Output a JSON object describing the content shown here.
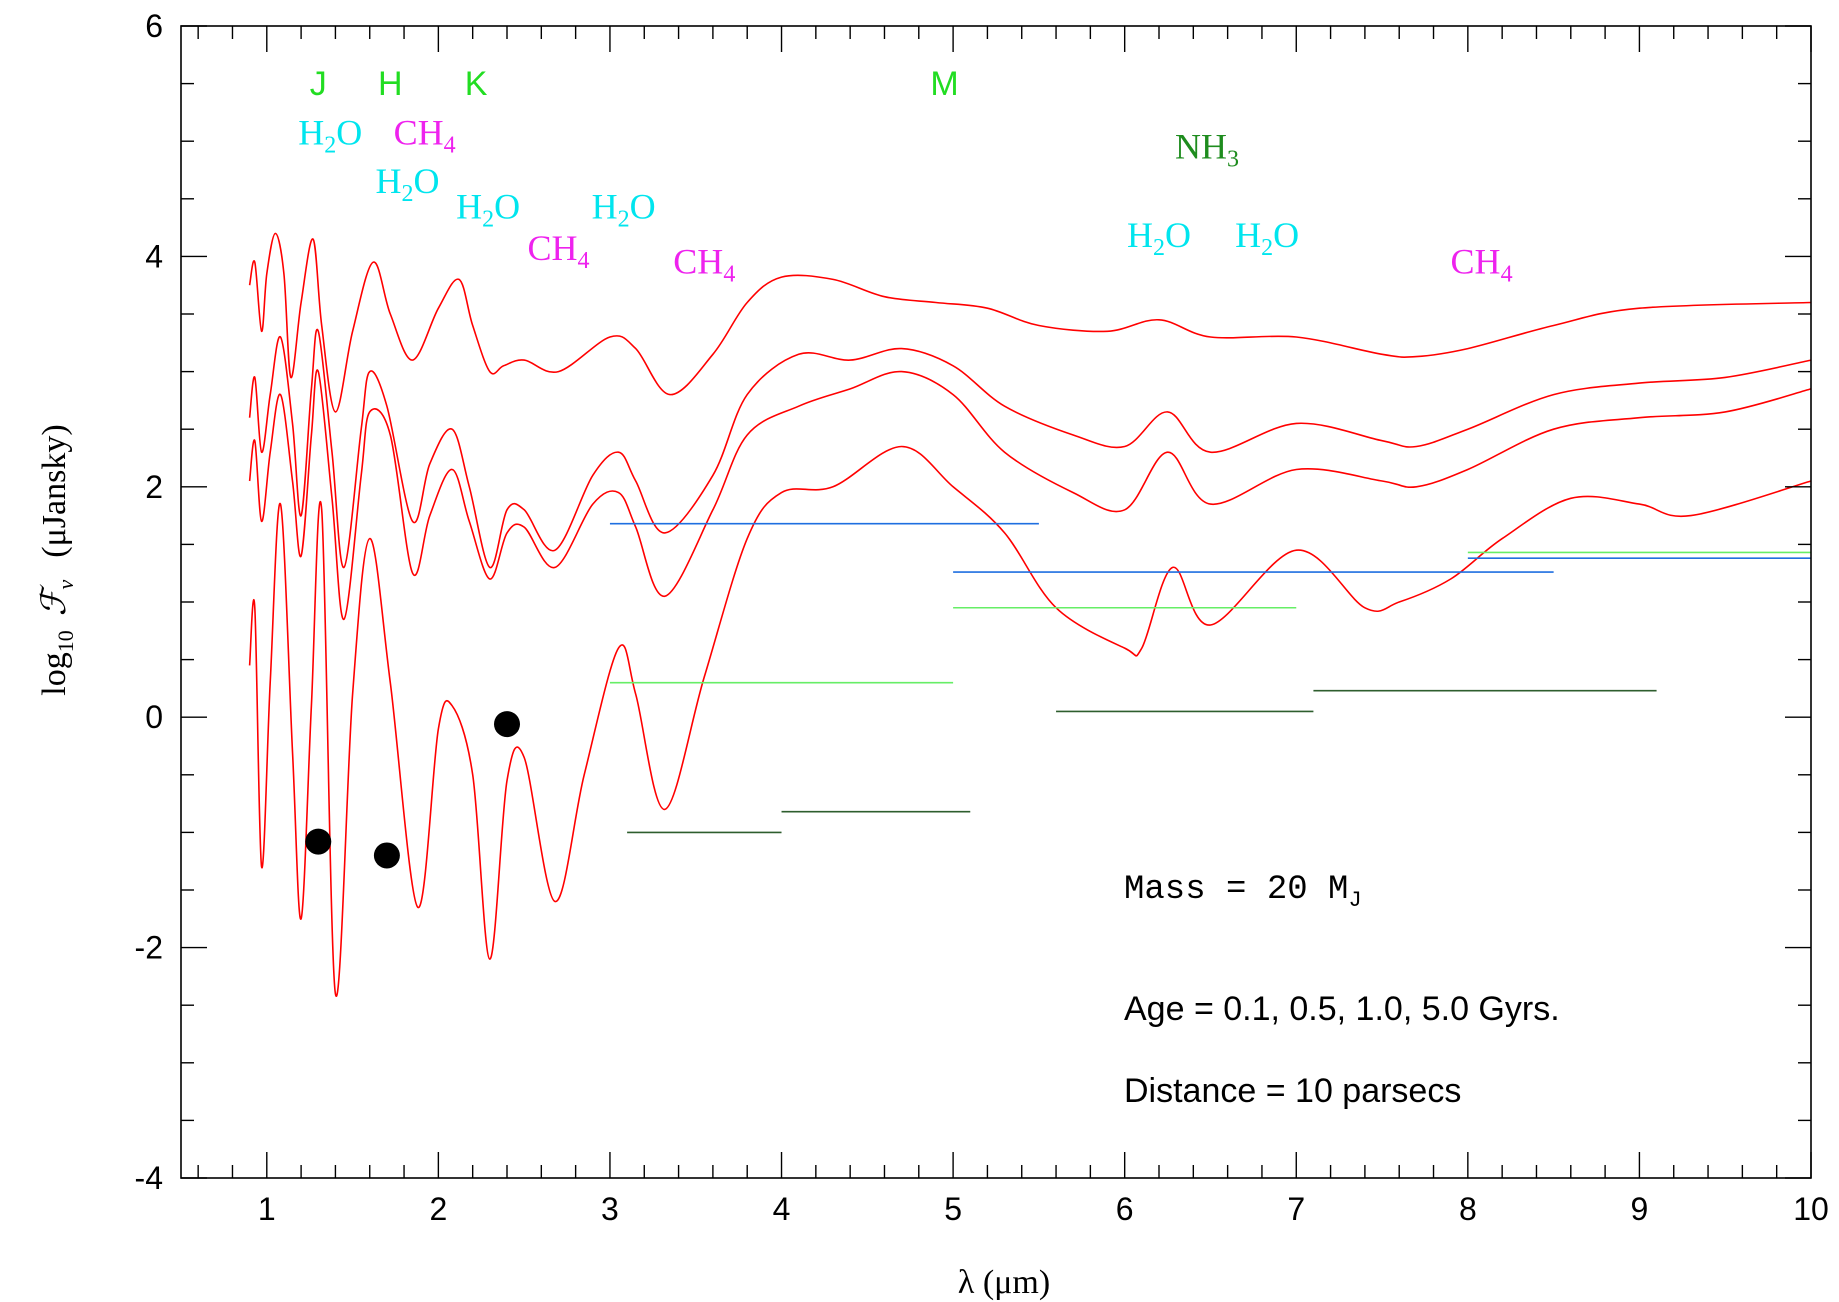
{
  "chart_data": {
    "type": "line",
    "xlabel": "λ (μm)",
    "ylabel_parts": {
      "log": "log",
      "sub": "10",
      "fnu": "ℱ",
      "nu": "ν",
      "unit": "(μJansky)"
    },
    "xlim": [
      0.5,
      10
    ],
    "ylim": [
      -4,
      6
    ],
    "x_ticks": [
      "1",
      "2",
      "3",
      "4",
      "5",
      "6",
      "7",
      "8",
      "9",
      "10"
    ],
    "y_ticks": [
      "-4",
      "-2",
      "0",
      "2",
      "4",
      "6"
    ],
    "series": [
      {
        "color": "#ff0000",
        "x": [
          0.9,
          0.93,
          0.97,
          1.0,
          1.05,
          1.1,
          1.14,
          1.2,
          1.27,
          1.32,
          1.4,
          1.5,
          1.62,
          1.72,
          1.85,
          2.0,
          2.12,
          2.2,
          2.3,
          2.38,
          2.5,
          2.7,
          3.0,
          3.15,
          3.35,
          3.6,
          3.8,
          4.0,
          4.3,
          4.6,
          4.9,
          5.2,
          5.5,
          5.9,
          6.2,
          6.5,
          7.0,
          7.5,
          7.7,
          8.0,
          8.5,
          9.0,
          10.0
        ],
        "y": [
          3.75,
          3.95,
          3.35,
          3.85,
          4.2,
          3.85,
          2.95,
          3.6,
          4.15,
          3.4,
          2.65,
          3.35,
          3.95,
          3.5,
          3.1,
          3.55,
          3.8,
          3.4,
          3.0,
          3.05,
          3.1,
          3.0,
          3.3,
          3.2,
          2.8,
          3.15,
          3.6,
          3.82,
          3.8,
          3.65,
          3.6,
          3.55,
          3.4,
          3.35,
          3.45,
          3.3,
          3.3,
          3.15,
          3.13,
          3.2,
          3.4,
          3.55,
          3.6
        ]
      },
      {
        "color": "#ff0000",
        "x": [
          0.9,
          0.93,
          0.97,
          1.02,
          1.08,
          1.15,
          1.2,
          1.26,
          1.3,
          1.38,
          1.45,
          1.55,
          1.6,
          1.7,
          1.85,
          1.95,
          2.08,
          2.18,
          2.3,
          2.4,
          2.5,
          2.68,
          2.9,
          3.05,
          3.15,
          3.32,
          3.6,
          3.8,
          4.1,
          4.4,
          4.7,
          5.0,
          5.3,
          5.7,
          6.0,
          6.25,
          6.5,
          7.0,
          7.5,
          7.7,
          8.0,
          8.5,
          9.0,
          9.5,
          10.0
        ],
        "y": [
          2.6,
          2.95,
          2.3,
          2.8,
          3.3,
          2.55,
          1.75,
          2.85,
          3.35,
          2.3,
          1.3,
          2.5,
          3.0,
          2.7,
          1.7,
          2.2,
          2.5,
          2.0,
          1.3,
          1.8,
          1.8,
          1.45,
          2.1,
          2.3,
          2.05,
          1.6,
          2.1,
          2.8,
          3.15,
          3.1,
          3.2,
          3.05,
          2.7,
          2.45,
          2.35,
          2.65,
          2.3,
          2.55,
          2.4,
          2.35,
          2.5,
          2.8,
          2.9,
          2.95,
          3.1
        ]
      },
      {
        "color": "#ff0000",
        "x": [
          0.9,
          0.93,
          0.97,
          1.02,
          1.08,
          1.15,
          1.2,
          1.26,
          1.3,
          1.38,
          1.45,
          1.55,
          1.6,
          1.72,
          1.85,
          1.95,
          2.08,
          2.18,
          2.3,
          2.4,
          2.5,
          2.68,
          2.9,
          3.05,
          3.15,
          3.32,
          3.6,
          3.8,
          4.1,
          4.4,
          4.7,
          5.0,
          5.3,
          5.7,
          6.0,
          6.25,
          6.5,
          7.0,
          7.5,
          7.7,
          8.0,
          8.5,
          9.0,
          9.5,
          10.0
        ],
        "y": [
          2.05,
          2.4,
          1.7,
          2.3,
          2.8,
          2.05,
          1.4,
          2.45,
          3.0,
          1.9,
          0.85,
          2.1,
          2.65,
          2.45,
          1.25,
          1.75,
          2.15,
          1.7,
          1.2,
          1.6,
          1.65,
          1.3,
          1.85,
          1.95,
          1.65,
          1.05,
          1.8,
          2.45,
          2.7,
          2.85,
          3.0,
          2.8,
          2.3,
          1.95,
          1.8,
          2.3,
          1.85,
          2.15,
          2.05,
          2.0,
          2.15,
          2.5,
          2.6,
          2.65,
          2.85
        ]
      },
      {
        "color": "#ff0000",
        "x": [
          0.9,
          0.93,
          0.97,
          1.02,
          1.08,
          1.15,
          1.2,
          1.26,
          1.32,
          1.4,
          1.5,
          1.6,
          1.72,
          1.88,
          2.0,
          2.08,
          2.2,
          2.3,
          2.4,
          2.5,
          2.68,
          2.85,
          3.05,
          3.15,
          3.32,
          3.55,
          3.8,
          4.0,
          4.3,
          4.7,
          5.0,
          5.3,
          5.6,
          6.0,
          6.1,
          6.28,
          6.5,
          7.0,
          7.4,
          7.6,
          7.9,
          8.2,
          8.6,
          9.0,
          9.3,
          10.0
        ],
        "y": [
          0.45,
          0.95,
          -1.3,
          0.3,
          1.85,
          -0.3,
          -1.75,
          0.1,
          1.8,
          -2.4,
          0.2,
          1.55,
          0.3,
          -1.65,
          -0.1,
          0.1,
          -0.5,
          -2.1,
          -0.55,
          -0.35,
          -1.6,
          -0.5,
          0.6,
          0.2,
          -0.8,
          0.35,
          1.55,
          1.95,
          2.0,
          2.35,
          2.0,
          1.6,
          0.95,
          0.6,
          0.6,
          1.3,
          0.8,
          1.45,
          0.95,
          1.0,
          1.2,
          1.55,
          1.9,
          1.85,
          1.75,
          2.05
        ]
      }
    ],
    "filter_bands": [
      {
        "color": "#1f6fe0",
        "x": [
          3.0,
          5.5
        ],
        "y": 1.68
      },
      {
        "color": "#1f6fe0",
        "x": [
          5.0,
          8.5
        ],
        "y": 1.26
      },
      {
        "color": "#1f6fe0",
        "x": [
          8.0,
          10.0
        ],
        "y": 1.38
      },
      {
        "color": "#66ee66",
        "x": [
          3.0,
          5.0
        ],
        "y": 0.3
      },
      {
        "color": "#66ee66",
        "x": [
          5.0,
          7.0
        ],
        "y": 0.95
      },
      {
        "color": "#66ee66",
        "x": [
          8.0,
          10.0
        ],
        "y": 1.43
      },
      {
        "color": "#2e5e2e",
        "x": [
          3.1,
          4.0
        ],
        "y": -1.0
      },
      {
        "color": "#2e5e2e",
        "x": [
          4.0,
          5.1
        ],
        "y": -0.82
      },
      {
        "color": "#2e5e2e",
        "x": [
          5.6,
          7.1
        ],
        "y": 0.05
      },
      {
        "color": "#2e5e2e",
        "x": [
          7.1,
          9.1
        ],
        "y": 0.23
      }
    ],
    "points": [
      {
        "x": 1.3,
        "y": -1.08
      },
      {
        "x": 1.7,
        "y": -1.2
      },
      {
        "x": 2.4,
        "y": -0.06
      }
    ],
    "band_labels": [
      {
        "text": "J",
        "x": 1.3,
        "y": 5.4,
        "color": "#22dd22"
      },
      {
        "text": "H",
        "x": 1.72,
        "y": 5.4,
        "color": "#22dd22"
      },
      {
        "text": "K",
        "x": 2.22,
        "y": 5.4,
        "color": "#22dd22"
      },
      {
        "text": "M",
        "x": 4.95,
        "y": 5.4,
        "color": "#22dd22"
      }
    ],
    "molecule_labels": [
      {
        "base": "H",
        "sub": "2",
        "rest": "O",
        "x": 1.37,
        "y": 4.97,
        "color": "#00e5ee"
      },
      {
        "base": "CH",
        "sub": "4",
        "rest": "",
        "x": 1.92,
        "y": 4.97,
        "color": "#ee22ee"
      },
      {
        "base": "H",
        "sub": "2",
        "rest": "O",
        "x": 1.82,
        "y": 4.55,
        "color": "#00e5ee"
      },
      {
        "base": "H",
        "sub": "2",
        "rest": "O",
        "x": 2.29,
        "y": 4.33,
        "color": "#00e5ee"
      },
      {
        "base": "H",
        "sub": "2",
        "rest": "O",
        "x": 3.08,
        "y": 4.33,
        "color": "#00e5ee"
      },
      {
        "base": "CH",
        "sub": "4",
        "rest": "",
        "x": 2.7,
        "y": 3.97,
        "color": "#ee22ee"
      },
      {
        "base": "CH",
        "sub": "4",
        "rest": "",
        "x": 3.55,
        "y": 3.85,
        "color": "#ee22ee"
      },
      {
        "base": "NH",
        "sub": "3",
        "rest": "",
        "x": 6.48,
        "y": 4.85,
        "color": "#1e8c1e"
      },
      {
        "base": "H",
        "sub": "2",
        "rest": "O",
        "x": 6.2,
        "y": 4.08,
        "color": "#00e5ee"
      },
      {
        "base": "H",
        "sub": "2",
        "rest": "O",
        "x": 6.83,
        "y": 4.08,
        "color": "#00e5ee"
      },
      {
        "base": "CH",
        "sub": "4",
        "rest": "",
        "x": 8.08,
        "y": 3.85,
        "color": "#ee22ee"
      }
    ],
    "annotations": {
      "mass": {
        "text": "Mass = 20 M",
        "sub": "J"
      },
      "age": "Age = 0.1, 0.5, 1.0, 5.0 Gyrs.",
      "distance": "Distance = 10 parsecs"
    }
  }
}
